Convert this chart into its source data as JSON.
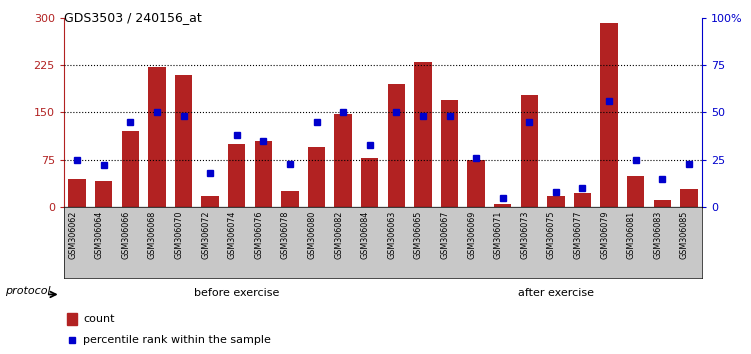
{
  "title": "GDS3503 / 240156_at",
  "categories": [
    "GSM306062",
    "GSM306064",
    "GSM306066",
    "GSM306068",
    "GSM306070",
    "GSM306072",
    "GSM306074",
    "GSM306076",
    "GSM306078",
    "GSM306080",
    "GSM306082",
    "GSM306084",
    "GSM306063",
    "GSM306065",
    "GSM306067",
    "GSM306069",
    "GSM306071",
    "GSM306073",
    "GSM306075",
    "GSM306077",
    "GSM306079",
    "GSM306081",
    "GSM306083",
    "GSM306085"
  ],
  "count": [
    45,
    42,
    120,
    222,
    210,
    18,
    100,
    105,
    25,
    95,
    148,
    78,
    195,
    230,
    170,
    75,
    5,
    178,
    18,
    22,
    292,
    50,
    12,
    28
  ],
  "percentile": [
    25,
    22,
    45,
    50,
    48,
    18,
    38,
    35,
    23,
    45,
    50,
    33,
    50,
    48,
    48,
    26,
    5,
    45,
    8,
    10,
    56,
    25,
    15,
    23
  ],
  "n_before": 13,
  "n_after": 11,
  "group1_label": "before exercise",
  "group2_label": "after exercise",
  "protocol_label": "protocol",
  "legend_count": "count",
  "legend_percentile": "percentile rank within the sample",
  "bar_color": "#B22222",
  "dot_color": "#0000CC",
  "ylim_left": [
    0,
    300
  ],
  "ylim_right": [
    0,
    100
  ],
  "yticks_left": [
    0,
    75,
    150,
    225,
    300
  ],
  "yticks_right": [
    0,
    25,
    50,
    75,
    100
  ],
  "ytick_labels_left": [
    "0",
    "75",
    "150",
    "225",
    "300"
  ],
  "ytick_labels_right": [
    "0",
    "25",
    "50",
    "75",
    "100%"
  ],
  "group1_color": "#90EE90",
  "group2_color": "#32CD32",
  "xtick_bg_color": "#C8C8C8",
  "title_fontsize": 9,
  "hgrid_yticks": [
    75,
    150,
    225
  ]
}
